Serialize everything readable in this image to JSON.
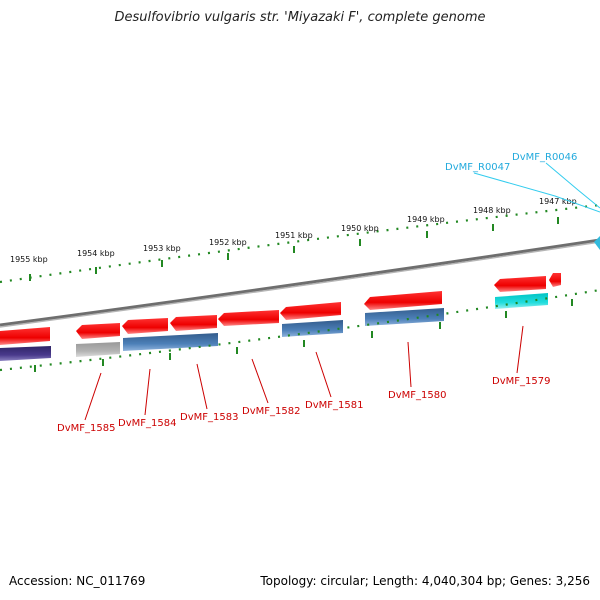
{
  "title": "Desulfovibrio vulgaris str. 'Miyazaki F', complete genome",
  "footer": {
    "accession": "Accession: NC_011769",
    "summary": "Topology: circular; Length: 4,040,304 bp; Genes: 3,256"
  },
  "scale_labels": [
    "1955 kbp",
    "1954 kbp",
    "1953 kbp",
    "1952 kbp",
    "1951 kbp",
    "1950 kbp",
    "1949 kbp",
    "1948 kbp",
    "1947 kbp"
  ],
  "gene_labels": [
    "DvMF_1585",
    "DvMF_1584",
    "DvMF_1583",
    "DvMF_1582",
    "DvMF_1581",
    "DvMF_1580",
    "DvMF_1579"
  ],
  "rna_labels": [
    "DvMF_R0047",
    "DvMF_R0046"
  ],
  "colors": {
    "cds": "#ee0000",
    "blue_feature": "#4477aa",
    "purple_feature": "#443388",
    "gray_feature": "#aaaaaa",
    "cyan_feature": "#00cccc",
    "backbone": "#888888",
    "tick": "#228822",
    "gene_label": "#cc0000",
    "rna_label": "#22aadd"
  }
}
